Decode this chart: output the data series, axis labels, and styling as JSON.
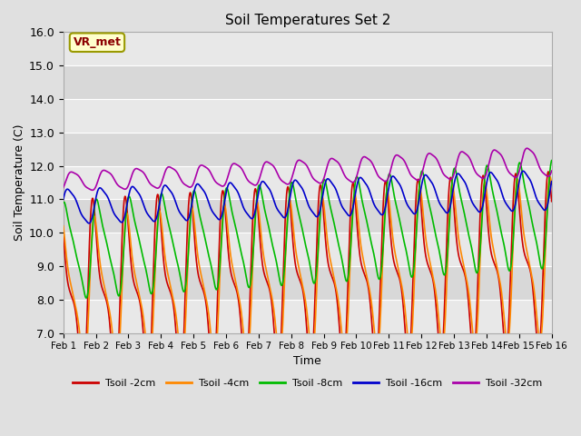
{
  "title": "Soil Temperatures Set 2",
  "xlabel": "Time",
  "ylabel": "Soil Temperature (C)",
  "ylim": [
    7.0,
    16.0
  ],
  "yticks": [
    7.0,
    8.0,
    9.0,
    10.0,
    11.0,
    12.0,
    13.0,
    14.0,
    15.0,
    16.0
  ],
  "xtick_labels": [
    "Feb 1",
    "Feb 2",
    "Feb 3",
    "Feb 4",
    "Feb 5",
    "Feb 6",
    "Feb 7",
    "Feb 8",
    "Feb 9",
    "Feb 10",
    "Feb 11",
    "Feb 12",
    "Feb 13",
    "Feb 14",
    "Feb 15",
    "Feb 16"
  ],
  "annotation": "VR_met",
  "colors": [
    "#cc0000",
    "#ff8800",
    "#00bb00",
    "#0000cc",
    "#aa00aa"
  ],
  "legend_order": [
    "Tsoil -2cm",
    "Tsoil -4cm",
    "Tsoil -8cm",
    "Tsoil -16cm",
    "Tsoil -32cm"
  ],
  "bg_color": "#e0e0e0",
  "plot_bg": "#f2f2f2",
  "stripe_light": "#e8e8e8",
  "stripe_dark": "#d8d8d8",
  "n_points": 1440,
  "days": 15
}
